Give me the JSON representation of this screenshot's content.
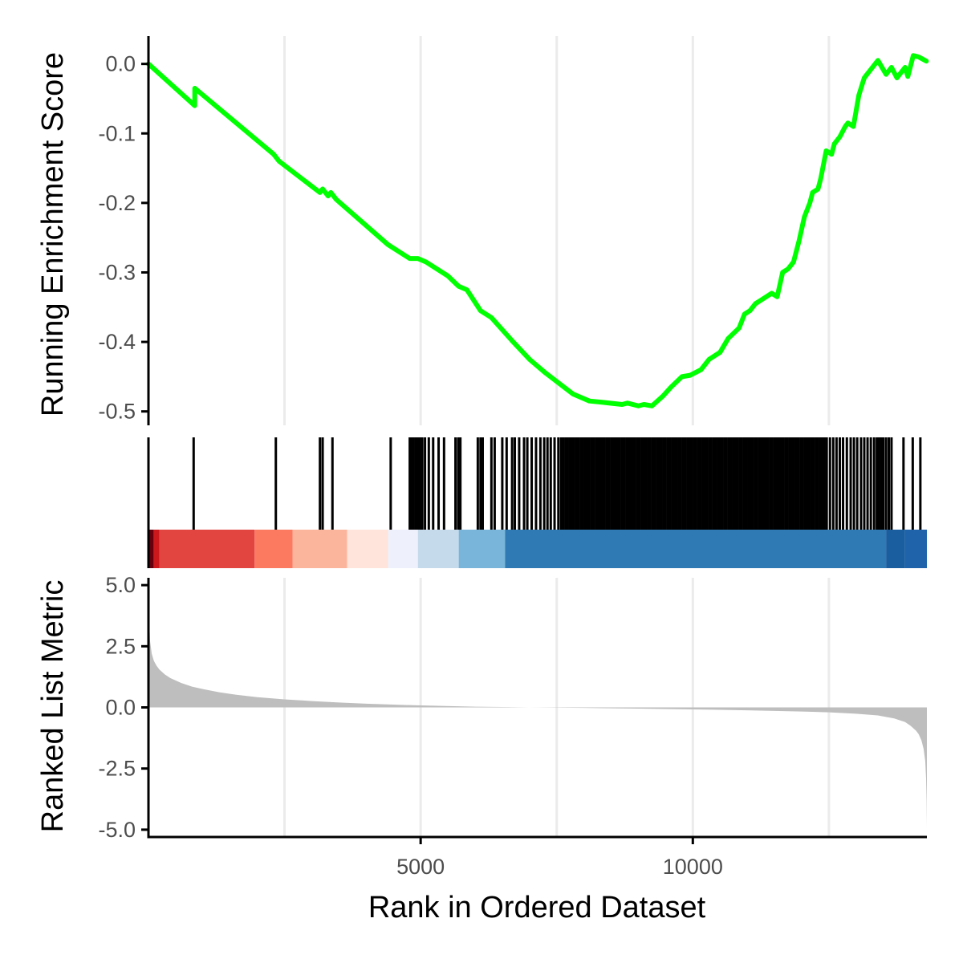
{
  "chart_data": {
    "type": "line",
    "xlabel": "Rank in Ordered Dataset",
    "x_ticks": [
      5000,
      10000
    ],
    "x_minor_grid": [
      2500,
      7500,
      12500
    ],
    "xlim": [
      0,
      14300
    ],
    "panels": {
      "enrichment": {
        "ylabel": "Running Enrichment Score",
        "ylim": [
          -0.52,
          0.04
        ],
        "y_ticks": [
          0.0,
          -0.1,
          -0.2,
          -0.3,
          -0.4,
          -0.5
        ],
        "y_tick_labels": [
          "0.0",
          "-0.1",
          "-0.2",
          "-0.3",
          "-0.4",
          "-0.5"
        ],
        "line_color": "#00FF00",
        "series": [
          {
            "x": [
              0,
              850,
              851,
              2300,
              2350,
              2400,
              3150,
              3200,
              3300,
              3350,
              3450,
              4400,
              4800,
              4950,
              5100,
              5500,
              5700,
              5850,
              6100,
              6300,
              6700,
              7000,
              7300,
              7800,
              8100,
              8350,
              8700,
              8800,
              9000,
              9100,
              9250,
              9350,
              9450,
              9600,
              9800,
              9950,
              10150,
              10300,
              10500,
              10650,
              10850,
              10950,
              11050,
              11150,
              11250,
              11350,
              11450,
              11550,
              11650,
              11750,
              11850,
              11950,
              12050,
              12150,
              12200,
              12300,
              12350,
              12450,
              12550,
              12600,
              12700,
              12800,
              12850,
              12950,
              13050,
              13150,
              13200,
              13250,
              13400,
              13550,
              13650,
              13750,
              13800,
              13900,
              13950,
              14050,
              14150,
              14290
            ],
            "y": [
              0.0,
              -0.06,
              -0.035,
              -0.13,
              -0.135,
              -0.14,
              -0.185,
              -0.18,
              -0.19,
              -0.185,
              -0.195,
              -0.26,
              -0.28,
              -0.28,
              -0.285,
              -0.305,
              -0.32,
              -0.325,
              -0.355,
              -0.365,
              -0.4,
              -0.425,
              -0.445,
              -0.475,
              -0.485,
              -0.487,
              -0.49,
              -0.488,
              -0.492,
              -0.49,
              -0.492,
              -0.485,
              -0.478,
              -0.465,
              -0.45,
              -0.448,
              -0.44,
              -0.425,
              -0.415,
              -0.395,
              -0.38,
              -0.36,
              -0.355,
              -0.345,
              -0.34,
              -0.335,
              -0.33,
              -0.335,
              -0.3,
              -0.295,
              -0.285,
              -0.255,
              -0.22,
              -0.2,
              -0.185,
              -0.18,
              -0.165,
              -0.125,
              -0.13,
              -0.115,
              -0.105,
              -0.09,
              -0.085,
              -0.09,
              -0.045,
              -0.02,
              -0.015,
              -0.01,
              0.005,
              -0.015,
              -0.005,
              -0.02,
              -0.015,
              -0.005,
              -0.018,
              0.012,
              0.01,
              0.004
            ]
          }
        ]
      },
      "hits": {
        "x": [
          830,
          2340,
          3150,
          3200,
          3380,
          4450,
          4800,
          4830,
          4870,
          4910,
          4950,
          4990,
          5030,
          5080,
          5150,
          5230,
          5330,
          5430,
          5640,
          5690,
          5730,
          6050,
          6100,
          6140,
          6300,
          6360,
          6500,
          6580,
          6680,
          6730,
          6810,
          6900,
          6960,
          7040,
          7120,
          7200,
          7270,
          7330,
          7390,
          7460,
          7530,
          7580,
          7620,
          7660,
          7700,
          7740,
          7780,
          7820,
          7860,
          7900,
          7940,
          7980,
          8020,
          8060,
          8100,
          8140,
          8180,
          8220,
          8260,
          8300,
          8340,
          8380,
          8420,
          8460,
          8500,
          8540,
          8580,
          8620,
          8660,
          8700,
          8740,
          8780,
          8820,
          8860,
          8900,
          8940,
          8980,
          9020,
          9060,
          9100,
          9140,
          9180,
          9220,
          9260,
          9300,
          9340,
          9380,
          9420,
          9460,
          9500,
          9540,
          9580,
          9620,
          9660,
          9700,
          9740,
          9780,
          9820,
          9860,
          9900,
          9940,
          9980,
          10020,
          10060,
          10100,
          10140,
          10180,
          10220,
          10260,
          10300,
          10340,
          10380,
          10420,
          10460,
          10500,
          10540,
          10580,
          10620,
          10660,
          10700,
          10740,
          10780,
          10820,
          10860,
          10900,
          10940,
          10980,
          11020,
          11060,
          11100,
          11140,
          11180,
          11220,
          11260,
          11300,
          11340,
          11380,
          11420,
          11460,
          11500,
          11540,
          11580,
          11620,
          11660,
          11700,
          11740,
          11780,
          11820,
          11860,
          11900,
          11940,
          11980,
          12020,
          12060,
          12100,
          12140,
          12180,
          12220,
          12260,
          12300,
          12340,
          12380,
          12420,
          12460,
          12520,
          12580,
          12640,
          12700,
          12760,
          12830,
          12900,
          12960,
          13020,
          13090,
          13150,
          13210,
          13270,
          13330,
          13380,
          13420,
          13460,
          13500,
          13550,
          13600,
          13650,
          13870,
          14040,
          14180
        ]
      },
      "color_bar": {
        "segments": [
          {
            "x0": 0,
            "x1": 100,
            "color": "#67000D"
          },
          {
            "x0": 100,
            "x1": 200,
            "color": "#CB181D"
          },
          {
            "x0": 200,
            "x1": 1950,
            "color": "#E2443F"
          },
          {
            "x0": 1950,
            "x1": 2650,
            "color": "#FB7A60"
          },
          {
            "x0": 2650,
            "x1": 3650,
            "color": "#FCB59D"
          },
          {
            "x0": 3650,
            "x1": 4400,
            "color": "#FEE4DA"
          },
          {
            "x0": 4400,
            "x1": 4950,
            "color": "#EEF0FB"
          },
          {
            "x0": 4950,
            "x1": 5700,
            "color": "#C5DAEA"
          },
          {
            "x0": 5700,
            "x1": 6550,
            "color": "#79B5DA"
          },
          {
            "x0": 6550,
            "x1": 13550,
            "color": "#2F79B5"
          },
          {
            "x0": 13550,
            "x1": 13900,
            "color": "#1A5E9F"
          },
          {
            "x0": 13900,
            "x1": 14300,
            "color": "#1F64AA"
          }
        ]
      },
      "metric": {
        "ylabel": "Ranked List Metric",
        "ylim": [
          -5.3,
          5.3
        ],
        "y_ticks": [
          5.0,
          2.5,
          0.0,
          -2.5,
          -5.0
        ],
        "y_tick_labels": [
          "5.0",
          "2.5",
          "0.0",
          "-2.5",
          "-5.0"
        ],
        "fill_color": "#BEBEBE",
        "series": [
          {
            "x": [
              0,
              10,
              30,
              60,
              100,
              150,
              200,
              300,
              400,
              600,
              800,
              1000,
              1300,
              1600,
              2000,
              2500,
              3000,
              3500,
              4000,
              5000,
              6000,
              7000,
              8000,
              9000,
              10000,
              11000,
              12000,
              12500,
              13000,
              13400,
              13700,
              13900,
              14000,
              14100,
              14150,
              14200,
              14240,
              14270,
              14285,
              14295,
              14300
            ],
            "y": [
              5.2,
              3.8,
              2.7,
              2.2,
              1.9,
              1.7,
              1.55,
              1.35,
              1.2,
              1.0,
              0.85,
              0.75,
              0.62,
              0.52,
              0.42,
              0.33,
              0.26,
              0.2,
              0.15,
              0.08,
              0.03,
              0.0,
              -0.02,
              -0.05,
              -0.08,
              -0.12,
              -0.17,
              -0.2,
              -0.26,
              -0.33,
              -0.45,
              -0.6,
              -0.75,
              -0.95,
              -1.1,
              -1.35,
              -1.7,
              -2.2,
              -2.9,
              -3.8,
              -4.9
            ]
          }
        ]
      }
    }
  }
}
